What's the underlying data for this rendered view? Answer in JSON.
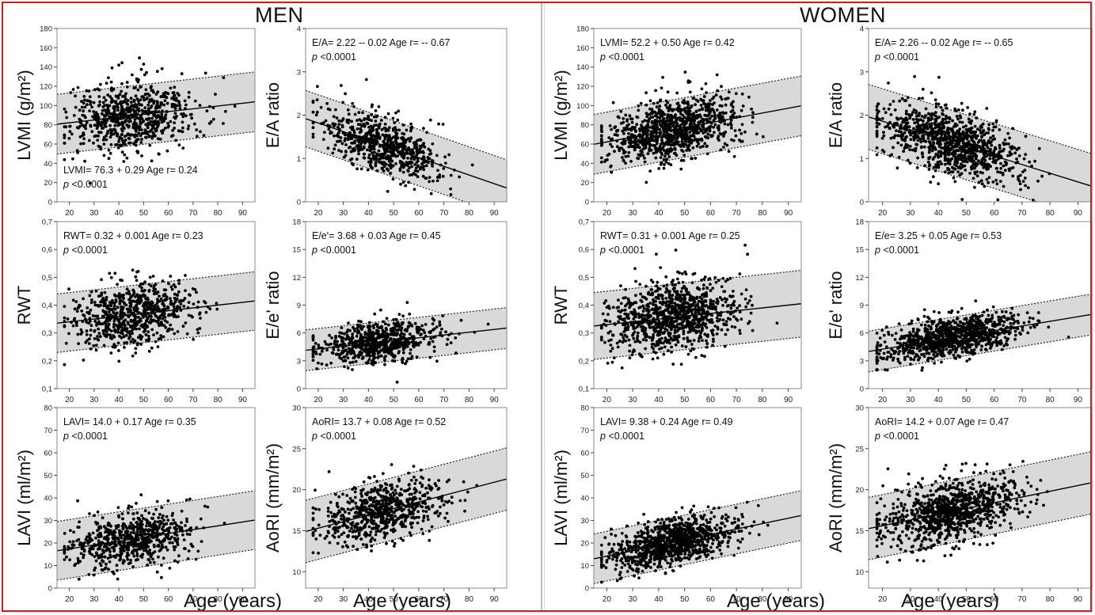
{
  "sections": {
    "men": {
      "title": "MEN",
      "xaxis_title": "Age (years)"
    },
    "women": {
      "title": "WOMEN",
      "xaxis_title": "Age (years)"
    }
  },
  "chart_data": [
    {
      "id": "men-lvmi",
      "type": "scatter",
      "ylabel": "LVMI (g/m²)",
      "ylim": [
        0,
        180
      ],
      "yticks": [
        0,
        20,
        40,
        60,
        80,
        100,
        120,
        140,
        160,
        180
      ],
      "xlim": [
        15,
        95
      ],
      "xticks": [
        20,
        30,
        40,
        50,
        60,
        70,
        80,
        90
      ],
      "equation": "LVMI= 76.3 + 0.29 Age   r= 0.24",
      "p_value": "<0.0001",
      "annotation_position": "bottom-left",
      "regression": {
        "intercept": 76.3,
        "slope": 0.29
      },
      "band_halfwidth": 31,
      "n_points": 700,
      "x_mean": 45,
      "x_sd": 12,
      "y_sd": 18
    },
    {
      "id": "men-ea",
      "type": "scatter",
      "ylabel": "E/A ratio",
      "ylim": [
        0,
        4
      ],
      "yticks": [
        0,
        1,
        2,
        3,
        4
      ],
      "xlim": [
        15,
        95
      ],
      "xticks": [
        20,
        30,
        40,
        50,
        60,
        70,
        80,
        90
      ],
      "equation": "E/A= 2.22 -- 0.02 Age   r= -- 0.67",
      "p_value": "<0.0001",
      "annotation_position": "top-left",
      "regression": {
        "intercept": 2.22,
        "slope": -0.02
      },
      "band_halfwidth": 0.65,
      "n_points": 700,
      "x_mean": 45,
      "x_sd": 12,
      "y_sd": 0.32
    },
    {
      "id": "men-rwt",
      "type": "scatter",
      "ylabel": "RWT",
      "ylim": [
        0.1,
        0.7
      ],
      "yticks": [
        0.1,
        0.2,
        0.3,
        0.4,
        0.5,
        0.6,
        0.7
      ],
      "xlim": [
        15,
        95
      ],
      "xticks": [
        20,
        30,
        40,
        50,
        60,
        70,
        80,
        90
      ],
      "equation": "RWT= 0.32 + 0.001 Age   r= 0.23",
      "p_value": "<0.0001",
      "annotation_position": "top-left",
      "regression": {
        "intercept": 0.32,
        "slope": 0.001
      },
      "band_halfwidth": 0.105,
      "n_points": 700,
      "x_mean": 45,
      "x_sd": 12,
      "y_sd": 0.055
    },
    {
      "id": "men-ee",
      "type": "scatter",
      "ylabel": "E/e' ratio",
      "ylim": [
        0,
        18
      ],
      "yticks": [
        0,
        3,
        6,
        9,
        12,
        15,
        18
      ],
      "xlim": [
        15,
        95
      ],
      "xticks": [
        20,
        30,
        40,
        50,
        60,
        70,
        80,
        90
      ],
      "equation": "E/e'= 3.68 + 0.03 Age   r= 0.45",
      "p_value": "<0.0001",
      "annotation_position": "top-left",
      "regression": {
        "intercept": 3.68,
        "slope": 0.03
      },
      "band_halfwidth": 2.2,
      "n_points": 700,
      "x_mean": 45,
      "x_sd": 12,
      "y_sd": 1.0
    },
    {
      "id": "men-lavi",
      "type": "scatter",
      "ylabel": "LAVI (ml/m²)",
      "ylim": [
        0,
        80
      ],
      "yticks": [
        0,
        10,
        20,
        30,
        40,
        50,
        60,
        70,
        80
      ],
      "xlim": [
        15,
        95
      ],
      "xticks": [
        20,
        30,
        40,
        50,
        60,
        70,
        80,
        90
      ],
      "equation": "LAVI= 14.0 + 0.17 Age   r= 0.35",
      "p_value": "<0.0001",
      "annotation_position": "top-left",
      "regression": {
        "intercept": 14.0,
        "slope": 0.17
      },
      "band_halfwidth": 13,
      "n_points": 700,
      "x_mean": 45,
      "x_sd": 12,
      "y_sd": 5.5
    },
    {
      "id": "men-aori",
      "type": "scatter",
      "ylabel": "AoRI (mm/m²)",
      "ylim": [
        8,
        30
      ],
      "yticks": [
        10,
        15,
        20,
        25,
        30
      ],
      "xlim": [
        15,
        95
      ],
      "xticks": [
        20,
        30,
        40,
        50,
        60,
        70,
        80,
        90
      ],
      "equation": "AoRI= 13.7 + 0.08 Age   r= 0.52",
      "p_value": "<0.0001",
      "annotation_position": "top-left",
      "regression": {
        "intercept": 13.7,
        "slope": 0.08
      },
      "band_halfwidth": 3.8,
      "n_points": 700,
      "x_mean": 45,
      "x_sd": 12,
      "y_sd": 1.8
    },
    {
      "id": "women-lvmi",
      "type": "scatter",
      "ylabel": "LVMI (g/m²)",
      "ylim": [
        0,
        180
      ],
      "yticks": [
        0,
        20,
        40,
        60,
        80,
        100,
        120,
        140,
        160,
        180
      ],
      "xlim": [
        15,
        95
      ],
      "xticks": [
        20,
        30,
        40,
        50,
        60,
        70,
        80,
        90
      ],
      "equation": "LVMI= 52.2 + 0.50 Age   r= 0.42",
      "p_value": "<0.0001",
      "annotation_position": "top-left",
      "regression": {
        "intercept": 52.2,
        "slope": 0.5
      },
      "band_halfwidth": 31,
      "n_points": 1000,
      "x_mean": 45,
      "x_sd": 12,
      "y_sd": 15
    },
    {
      "id": "women-ea",
      "type": "scatter",
      "ylabel": "E/A ratio",
      "ylim": [
        0,
        4
      ],
      "yticks": [
        0,
        1,
        2,
        3,
        4
      ],
      "xlim": [
        15,
        95
      ],
      "xticks": [
        20,
        30,
        40,
        50,
        60,
        70,
        80,
        90
      ],
      "equation": "E/A= 2.26 -- 0.02 Age   r= -- 0.65",
      "p_value": "<0.0001",
      "annotation_position": "top-left",
      "regression": {
        "intercept": 2.26,
        "slope": -0.02
      },
      "band_halfwidth": 0.75,
      "n_points": 1000,
      "x_mean": 45,
      "x_sd": 12,
      "y_sd": 0.35
    },
    {
      "id": "women-rwt",
      "type": "scatter",
      "ylabel": "RWT",
      "ylim": [
        0.1,
        0.7
      ],
      "yticks": [
        0.1,
        0.2,
        0.3,
        0.4,
        0.5,
        0.6,
        0.7
      ],
      "xlim": [
        15,
        95
      ],
      "xticks": [
        20,
        30,
        40,
        50,
        60,
        70,
        80,
        90
      ],
      "equation": "RWT= 0.31 + 0.001 Age   r= 0.25",
      "p_value": "<0.0001",
      "annotation_position": "top-left",
      "regression": {
        "intercept": 0.31,
        "slope": 0.001
      },
      "band_halfwidth": 0.12,
      "n_points": 1000,
      "x_mean": 45,
      "x_sd": 12,
      "y_sd": 0.06
    },
    {
      "id": "women-ee",
      "type": "scatter",
      "ylabel": "E/e' ratio",
      "ylim": [
        0,
        18
      ],
      "yticks": [
        0,
        3,
        6,
        9,
        12,
        15,
        18
      ],
      "xlim": [
        15,
        95
      ],
      "xticks": [
        20,
        30,
        40,
        50,
        60,
        70,
        80,
        90
      ],
      "equation": "E/e= 3.25 + 0.05 Age   r= 0.53",
      "p_value": "<0.0001",
      "annotation_position": "top-left",
      "regression": {
        "intercept": 3.25,
        "slope": 0.05
      },
      "band_halfwidth": 2.2,
      "n_points": 1000,
      "x_mean": 45,
      "x_sd": 12,
      "y_sd": 1.0
    },
    {
      "id": "women-lavi",
      "type": "scatter",
      "ylabel": "LAVI (ml/m²)",
      "ylim": [
        0,
        80
      ],
      "yticks": [
        0,
        10,
        20,
        30,
        40,
        50,
        60,
        70,
        80
      ],
      "xlim": [
        15,
        95
      ],
      "xticks": [
        20,
        30,
        40,
        50,
        60,
        70,
        80,
        90
      ],
      "equation": "LAVI= 9.38 + 0.24 Age   r= 0.49",
      "p_value": "<0.0001",
      "annotation_position": "top-left",
      "regression": {
        "intercept": 9.38,
        "slope": 0.24
      },
      "band_halfwidth": 11,
      "n_points": 1000,
      "x_mean": 45,
      "x_sd": 12,
      "y_sd": 5.0
    },
    {
      "id": "women-aori",
      "type": "scatter",
      "ylabel": "AoRI (mm/m²)",
      "ylim": [
        8,
        30
      ],
      "yticks": [
        10,
        15,
        20,
        25,
        30
      ],
      "xlim": [
        15,
        95
      ],
      "xticks": [
        20,
        30,
        40,
        50,
        60,
        70,
        80,
        90
      ],
      "equation": "AoRI= 14.2 + 0.07 Age   r= 0.47",
      "p_value": "<0.0001",
      "annotation_position": "top-left",
      "regression": {
        "intercept": 14.2,
        "slope": 0.07
      },
      "band_halfwidth": 3.8,
      "n_points": 1000,
      "x_mean": 45,
      "x_sd": 12,
      "y_sd": 1.8
    }
  ]
}
